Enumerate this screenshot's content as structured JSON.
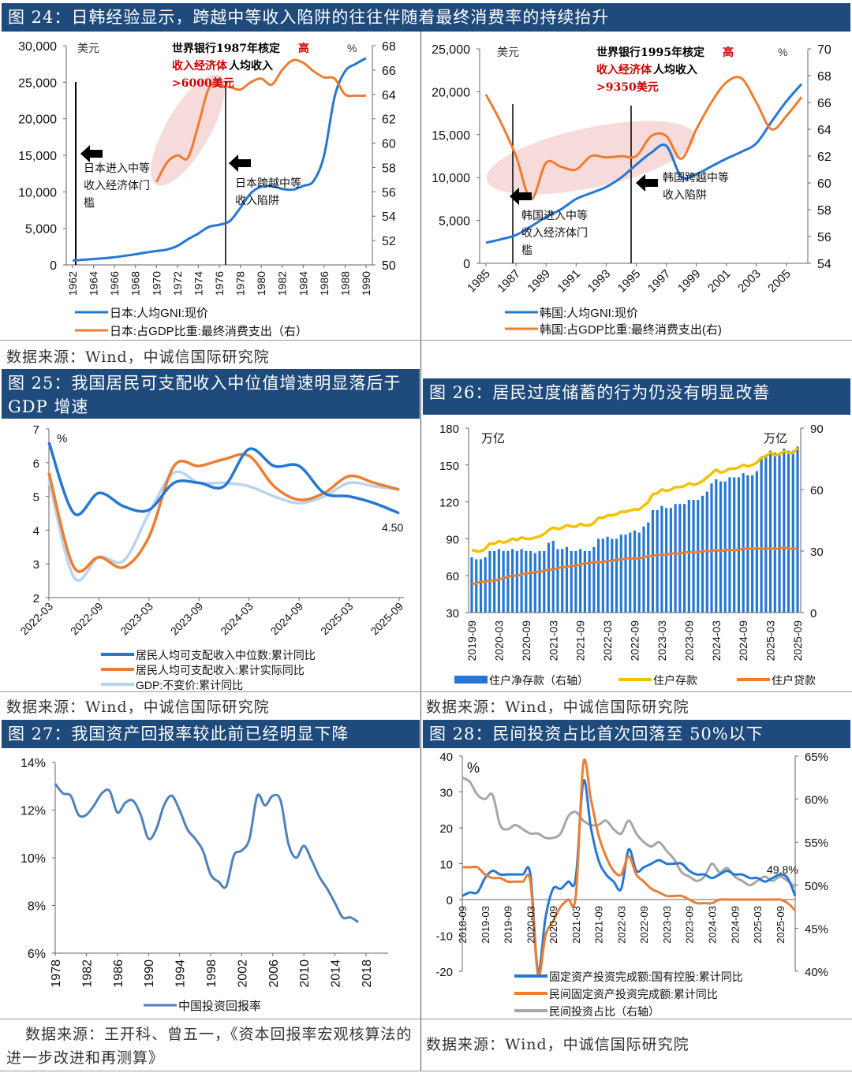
{
  "source_label": "数据来源：Wind，中诚信国际研究院",
  "chart_data": [
    {
      "id": "fig24a",
      "type": "line",
      "title": "图 24：日韩经验显示，跨越中等收入陷阱的往往伴随着最终消费率的持续抬升",
      "left_unit": "美元",
      "right_unit": "%",
      "x": [
        1962,
        1963,
        1964,
        1965,
        1966,
        1967,
        1968,
        1969,
        1970,
        1971,
        1972,
        1973,
        1974,
        1975,
        1976,
        1977,
        1978,
        1979,
        1980,
        1981,
        1982,
        1983,
        1984,
        1985,
        1986,
        1987,
        1988,
        1989,
        1990
      ],
      "xticks": [
        "1962",
        "1964",
        "1966",
        "1968",
        "1970",
        "1972",
        "1974",
        "1976",
        "1978",
        "1980",
        "1982",
        "1984",
        "1986",
        "1988",
        "1990"
      ],
      "ylim_left": [
        0,
        30000
      ],
      "yticks_left": [
        "0",
        "5,000",
        "10,000",
        "15,000",
        "20,000",
        "25,000",
        "30,000"
      ],
      "ylim_right": [
        50,
        68
      ],
      "yticks_right": [
        "50",
        "52",
        "54",
        "56",
        "58",
        "60",
        "62",
        "64",
        "66",
        "68"
      ],
      "series": [
        {
          "name": "日本:人均GNI:现价",
          "axis": "left",
          "color": "#2478d4",
          "values": [
            600,
            700,
            800,
            900,
            1050,
            1250,
            1450,
            1700,
            1900,
            2100,
            2600,
            3500,
            4300,
            5200,
            5500,
            6000,
            7800,
            9800,
            10700,
            10800,
            10400,
            10300,
            10800,
            11500,
            15000,
            23000,
            26500,
            27500,
            28300
          ]
        },
        {
          "name": "日本:占GDP比重:最终消费支出（右）",
          "axis": "right",
          "color": "#ed7d31",
          "values": [
            null,
            null,
            null,
            null,
            null,
            null,
            null,
            null,
            56.8,
            58.4,
            59.0,
            58.8,
            61.5,
            64.5,
            64.7,
            64.6,
            64.4,
            65.0,
            65.3,
            64.8,
            66.0,
            66.8,
            66.6,
            65.9,
            65.4,
            65.3,
            64.0,
            63.9,
            63.9
          ]
        }
      ],
      "annotations": {
        "top_line1_black": "世界银行1987年核定",
        "top_line1_red": "高",
        "top_line2_red": "收入经济体",
        "top_line2_black": "人均收入",
        "top_line3_red": ">6000美元",
        "enter_lines": [
          "日本进入中等",
          "收入经济体门",
          "槛"
        ],
        "cross_lines": [
          "日本跨越中等",
          "收入陷阱"
        ]
      },
      "legend": [
        "日本:人均GNI:现价",
        "日本:占GDP比重:最终消费支出（右）"
      ]
    },
    {
      "id": "fig24b",
      "type": "line",
      "left_unit": "美元",
      "right_unit": "%",
      "x": [
        1985,
        1986,
        1987,
        1988,
        1989,
        1990,
        1991,
        1992,
        1993,
        1994,
        1995,
        1996,
        1997,
        1998,
        1999,
        2000,
        2001,
        2002,
        2003,
        2004,
        2005,
        2006
      ],
      "xticks": [
        "1985",
        "1987",
        "1989",
        "1991",
        "1993",
        "1995",
        "1997",
        "1999",
        "2001",
        "2003",
        "2005"
      ],
      "ylim_left": [
        0,
        25000
      ],
      "yticks_left": [
        "0",
        "5,000",
        "10,000",
        "15,000",
        "20,000",
        "25,000"
      ],
      "ylim_right": [
        54,
        70
      ],
      "yticks_right": [
        "54",
        "56",
        "58",
        "60",
        "62",
        "64",
        "66",
        "68",
        "70"
      ],
      "series": [
        {
          "name": "韩国:人均GNI:现价",
          "axis": "left",
          "color": "#2478d4",
          "values": [
            2400,
            2800,
            3300,
            4300,
            5400,
            6300,
            7500,
            8200,
            8900,
            10000,
            11500,
            12900,
            13700,
            10100,
            10400,
            11300,
            12200,
            13000,
            14000,
            16500,
            18900,
            20900
          ]
        },
        {
          "name": "韩国:占GDP比重:最终消费支出(右)",
          "axis": "right",
          "color": "#ed7d31",
          "values": [
            66.6,
            64.5,
            62.0,
            58.8,
            61.5,
            61.2,
            61.0,
            62.0,
            61.9,
            62.0,
            62.0,
            63.5,
            63.5,
            61.8,
            64.0,
            66.0,
            67.5,
            67.8,
            66.0,
            64.0,
            65.0,
            66.4
          ]
        }
      ],
      "annotations": {
        "top_line1_black": "世界银行1995年核定",
        "top_line1_red": "高",
        "top_line2_red": "收入经济体",
        "top_line2_black": "人均收入",
        "top_line3_red": ">9350美元",
        "enter_lines": [
          "韩国进入中等",
          "收入经济体门",
          "槛"
        ],
        "cross_lines": [
          "韩国跨越中等",
          "收入陷阱"
        ]
      },
      "legend": [
        "韩国:人均GNI:现价",
        "韩国:占GDP比重:最终消费支出(右)"
      ]
    },
    {
      "id": "fig25",
      "type": "line",
      "title": "图 25：我国居民可支配收入中位值增速明显落后于 GDP 增速",
      "unit": "%",
      "x": [
        "2022-03",
        "2022-06",
        "2022-09",
        "2022-12",
        "2023-03",
        "2023-06",
        "2023-09",
        "2023-12",
        "2024-03",
        "2024-06",
        "2024-09",
        "2024-12",
        "2025-03",
        "2025-06",
        "2025-09"
      ],
      "xticks": [
        "2022-03",
        "2022-09",
        "2023-03",
        "2023-09",
        "2024-03",
        "2024-09",
        "2025-03",
        "2025-09"
      ],
      "ylim": [
        2,
        7
      ],
      "yticks": [
        "2",
        "3",
        "4",
        "5",
        "6",
        "7"
      ],
      "series": [
        {
          "name": "居民人均可支配收入中位数:累计同比",
          "color": "#2478d4",
          "values": [
            6.6,
            4.5,
            5.1,
            4.7,
            4.6,
            5.4,
            5.4,
            5.3,
            6.4,
            5.9,
            5.9,
            5.1,
            5.0,
            4.8,
            4.5
          ]
        },
        {
          "name": "居民人均可支配收入:累计实际同比",
          "color": "#ed7d31",
          "values": [
            5.7,
            2.9,
            3.2,
            2.9,
            3.8,
            5.9,
            5.9,
            6.1,
            6.2,
            5.3,
            4.9,
            5.1,
            5.6,
            5.4,
            5.2
          ]
        },
        {
          "name": "GDP:不变价:累计同比",
          "color": "#b7d4f0",
          "values": [
            5.5,
            2.6,
            3.2,
            3.1,
            4.5,
            5.7,
            5.4,
            5.4,
            5.3,
            5.0,
            4.8,
            5.0,
            5.4,
            5.3,
            5.2
          ]
        }
      ],
      "data_label": "4.50"
    },
    {
      "id": "fig26",
      "type": "bar+line",
      "title": "图 26：居民过度储蓄的行为仍没有明显改善",
      "left_unit": "万亿",
      "right_unit": "万亿",
      "xticks": [
        "2019-09",
        "2020-03",
        "2020-09",
        "2021-03",
        "2021-09",
        "2022-03",
        "2022-09",
        "2023-03",
        "2023-09",
        "2024-03",
        "2024-09",
        "2025-03",
        "2025-09"
      ],
      "ylim_left": [
        30,
        180
      ],
      "yticks_left": [
        "30",
        "60",
        "90",
        "120",
        "150",
        "180"
      ],
      "ylim_right": [
        0,
        90
      ],
      "yticks_right": [
        "0",
        "30",
        "60",
        "90"
      ],
      "series": [
        {
          "name": "住户净存款（右轴）",
          "type": "bar",
          "axis": "right",
          "color": "#2478d4",
          "values": [
            27,
            26,
            26,
            27,
            30,
            30,
            31,
            30,
            30,
            31,
            30,
            31,
            30,
            30,
            29,
            30,
            30,
            34,
            35,
            31,
            31,
            32,
            30,
            30,
            31,
            30,
            30,
            32,
            36,
            36,
            37,
            36,
            36,
            38,
            38,
            39,
            40,
            39,
            42,
            44,
            50,
            50,
            52,
            51,
            51,
            53,
            53,
            53,
            55,
            55,
            55,
            57,
            59,
            63,
            65,
            64,
            64,
            66,
            66,
            66,
            68,
            67,
            67,
            69,
            76,
            77,
            79,
            78,
            78,
            80,
            79,
            79,
            81
          ]
        },
        {
          "name": "住户存款",
          "type": "line",
          "axis": "left",
          "color": "#f5c000",
          "values": [
            81,
            80,
            80,
            82,
            86,
            86,
            88,
            87,
            88,
            90,
            89,
            91,
            90,
            90,
            91,
            92,
            94,
            97,
            99,
            98,
            99,
            101,
            100,
            100,
            102,
            101,
            101,
            103,
            107,
            107,
            109,
            109,
            110,
            112,
            112,
            113,
            114,
            114,
            117,
            120,
            126,
            127,
            130,
            129,
            130,
            132,
            132,
            133,
            135,
            134,
            135,
            137,
            140,
            143,
            146,
            144,
            145,
            147,
            147,
            148,
            150,
            149,
            150,
            152,
            156,
            157,
            160,
            158,
            159,
            161,
            160,
            160,
            164
          ]
        },
        {
          "name": "住户贷款",
          "type": "line",
          "axis": "left",
          "color": "#ed7d31",
          "values": [
            53,
            54,
            55,
            55,
            56,
            56,
            57,
            58,
            59,
            60,
            60,
            61,
            62,
            62,
            63,
            63,
            64,
            65,
            65,
            66,
            67,
            67,
            68,
            68,
            69,
            70,
            70,
            71,
            71,
            71,
            72,
            72,
            73,
            73,
            74,
            74,
            74,
            74,
            75,
            76,
            76,
            77,
            77,
            77,
            78,
            78,
            78,
            79,
            79,
            79,
            79,
            80,
            80,
            80,
            81,
            80,
            81,
            81,
            81,
            81,
            82,
            82,
            82,
            82,
            82,
            82,
            82,
            82,
            82,
            83,
            82,
            82,
            82
          ]
        }
      ]
    },
    {
      "id": "fig27",
      "type": "line",
      "title": "图 27：我国资产回报率较此前已经明显下降",
      "x": [
        1978,
        1979,
        1980,
        1981,
        1982,
        1983,
        1984,
        1985,
        1986,
        1987,
        1988,
        1989,
        1990,
        1991,
        1992,
        1993,
        1994,
        1995,
        1996,
        1997,
        1998,
        1999,
        2000,
        2001,
        2002,
        2003,
        2004,
        2005,
        2006,
        2007,
        2008,
        2009,
        2010,
        2011,
        2012,
        2013,
        2014,
        2015,
        2016,
        2017
      ],
      "xticks": [
        "1978",
        "1982",
        "1986",
        "1990",
        "1994",
        "1998",
        "2002",
        "2006",
        "2010",
        "2014",
        "2018"
      ],
      "ylim": [
        6,
        14
      ],
      "yticks": [
        "6%",
        "8%",
        "10%",
        "12%",
        "14%"
      ],
      "series": [
        {
          "name": "中国投资回报率",
          "color": "#4f81bd",
          "values": [
            13.1,
            12.7,
            12.6,
            11.8,
            11.8,
            12.2,
            12.7,
            12.8,
            11.9,
            12.3,
            12.4,
            11.8,
            10.8,
            11.2,
            12.2,
            12.6,
            12.0,
            11.2,
            10.8,
            10.3,
            9.3,
            9.0,
            8.8,
            10.1,
            10.3,
            10.8,
            12.6,
            12.2,
            12.6,
            12.4,
            10.6,
            10.0,
            10.5,
            9.9,
            9.2,
            8.7,
            8.1,
            7.5,
            7.5,
            7.3
          ]
        }
      ],
      "source": "数据来源：王开科、曾五一，《资本回报率宏观核算法的进一步改进和再测算》"
    },
    {
      "id": "fig28",
      "type": "line",
      "title": "图 28：民间投资占比首次回落至 50%以下",
      "left_unit": "%",
      "xticks": [
        "2018-09",
        "2019-03",
        "2019-09",
        "2020-03",
        "2020-09",
        "2021-03",
        "2021-09",
        "2022-03",
        "2022-09",
        "2023-03",
        "2023-09",
        "2024-03",
        "2024-09",
        "2025-03",
        "2025-09"
      ],
      "ylim_left": [
        -20,
        40
      ],
      "yticks_left": [
        "-20",
        "-10",
        "0",
        "10",
        "20",
        "30",
        "40"
      ],
      "ylim_right": [
        40,
        65
      ],
      "yticks_right": [
        "40%",
        "45%",
        "50%",
        "55%",
        "60%",
        "65%"
      ],
      "series": [
        {
          "name": "固定资产投资完成额:国有控股:累计同比",
          "axis": "left",
          "color": "#2478d4",
          "values": [
            1,
            2,
            2,
            6,
            8,
            7,
            7,
            7,
            7,
            7,
            -20,
            -5,
            3,
            3,
            5,
            6,
            33,
            20,
            11,
            7,
            5,
            3,
            14,
            8,
            9,
            10,
            11,
            10,
            10,
            10,
            8,
            7,
            7,
            6,
            7,
            8,
            7,
            7,
            6,
            6,
            5,
            6,
            7,
            6,
            1
          ]
        },
        {
          "name": "民间固定资产投资完成额:累计同比",
          "axis": "left",
          "color": "#ed7d31",
          "values": [
            9,
            9,
            9,
            7,
            6,
            6,
            5,
            5,
            5,
            5,
            -21,
            -10,
            -6,
            -2,
            0,
            1,
            38,
            28,
            18,
            12,
            8,
            7,
            12,
            7,
            5,
            3,
            2,
            1,
            1,
            1,
            0,
            -1,
            -1,
            -1,
            0,
            0,
            0,
            0,
            0,
            0,
            0,
            0,
            0,
            -1,
            -3
          ]
        },
        {
          "name": "民间投资占比（右轴）",
          "axis": "right",
          "color": "#a6a6a6",
          "values": [
            62.5,
            62,
            60.5,
            60,
            60.5,
            57,
            56.5,
            57,
            56.5,
            56,
            56,
            55.5,
            55.5,
            56,
            58,
            58.5,
            57.5,
            57,
            57,
            57.5,
            56.5,
            56,
            57.5,
            56,
            55,
            54.5,
            55,
            54,
            53,
            51.5,
            51,
            50.5,
            51,
            52.5,
            51.5,
            52,
            51,
            50.5,
            50,
            50.5,
            51,
            50.5,
            51,
            50.5,
            49.8
          ]
        }
      ],
      "data_label": "49.8%"
    }
  ]
}
